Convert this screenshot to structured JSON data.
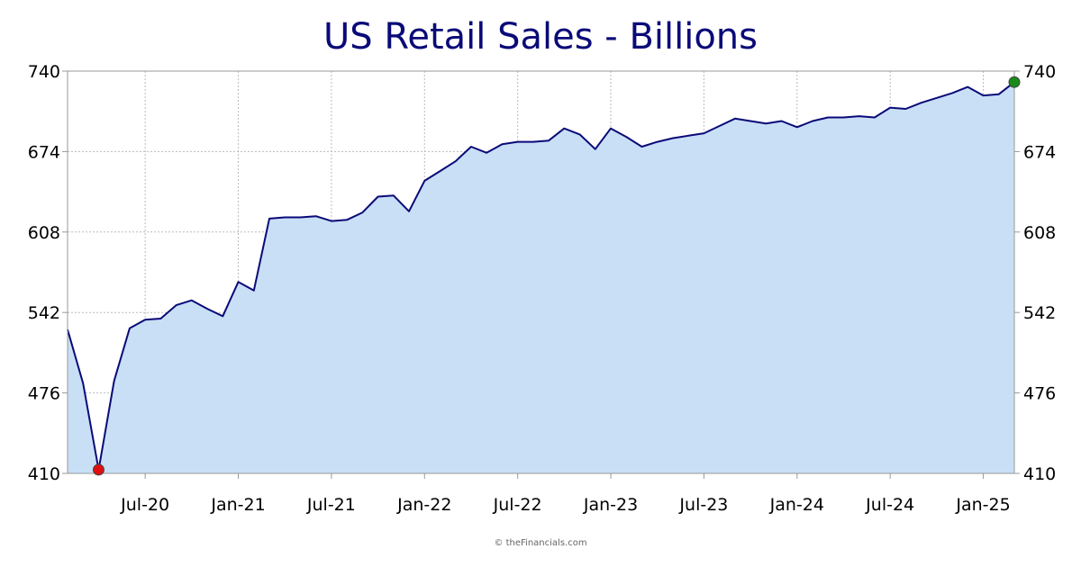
{
  "chart_data": {
    "type": "area",
    "title": "US Retail Sales - Billions",
    "xlabel": "",
    "ylabel": "",
    "ylim": [
      410,
      740
    ],
    "yticks": [
      410,
      476,
      542,
      608,
      674,
      740
    ],
    "ytick_labels": [
      "410",
      "476",
      "542",
      "608",
      "674",
      "740"
    ],
    "xticks": [
      {
        "label": "Jul-20",
        "date": "2020-07"
      },
      {
        "label": "Jan-21",
        "date": "2021-01"
      },
      {
        "label": "Jul-21",
        "date": "2021-07"
      },
      {
        "label": "Jan-22",
        "date": "2022-01"
      },
      {
        "label": "Jul-22",
        "date": "2022-07"
      },
      {
        "label": "Jan-23",
        "date": "2023-01"
      },
      {
        "label": "Jul-23",
        "date": "2023-07"
      },
      {
        "label": "Jan-24",
        "date": "2024-01"
      },
      {
        "label": "Jul-24",
        "date": "2024-07"
      },
      {
        "label": "Jan-25",
        "date": "2025-01"
      }
    ],
    "grid": true,
    "line_color": "#0a0a78",
    "fill_color": "#c8dff6",
    "min_marker_color": "#e01010",
    "max_marker_color": "#1a8a1a",
    "series": [
      {
        "x": [
          "2020-02",
          "2020-03",
          "2020-04",
          "2020-05",
          "2020-06",
          "2020-07",
          "2020-08",
          "2020-09",
          "2020-10",
          "2020-11",
          "2020-12",
          "2021-01",
          "2021-02",
          "2021-03",
          "2021-04",
          "2021-05",
          "2021-06",
          "2021-07",
          "2021-08",
          "2021-09",
          "2021-10",
          "2021-11",
          "2021-12",
          "2022-01",
          "2022-02",
          "2022-03",
          "2022-04",
          "2022-05",
          "2022-06",
          "2022-07",
          "2022-08",
          "2022-09",
          "2022-10",
          "2022-11",
          "2022-12",
          "2023-01",
          "2023-02",
          "2023-03",
          "2023-04",
          "2023-05",
          "2023-06",
          "2023-07",
          "2023-08",
          "2023-09",
          "2023-10",
          "2023-11",
          "2023-12",
          "2024-01",
          "2024-02",
          "2024-03",
          "2024-04",
          "2024-05",
          "2024-06",
          "2024-07",
          "2024-08",
          "2024-09",
          "2024-10",
          "2024-11",
          "2024-12",
          "2025-01",
          "2025-02",
          "2025-03"
        ],
        "values": [
          528,
          484,
          413,
          486,
          529,
          536,
          537,
          548,
          552,
          545,
          539,
          567,
          560,
          619,
          620,
          620,
          621,
          617,
          618,
          624,
          637,
          638,
          625,
          650,
          658,
          666,
          678,
          673,
          680,
          682,
          682,
          683,
          693,
          688,
          676,
          693,
          686,
          678,
          682,
          685,
          687,
          689,
          695,
          701,
          699,
          697,
          699,
          694,
          699,
          702,
          702,
          703,
          702,
          710,
          709,
          714,
          718,
          722,
          727,
          720,
          721,
          731
        ]
      }
    ]
  },
  "credit": "© theFinancials.com"
}
